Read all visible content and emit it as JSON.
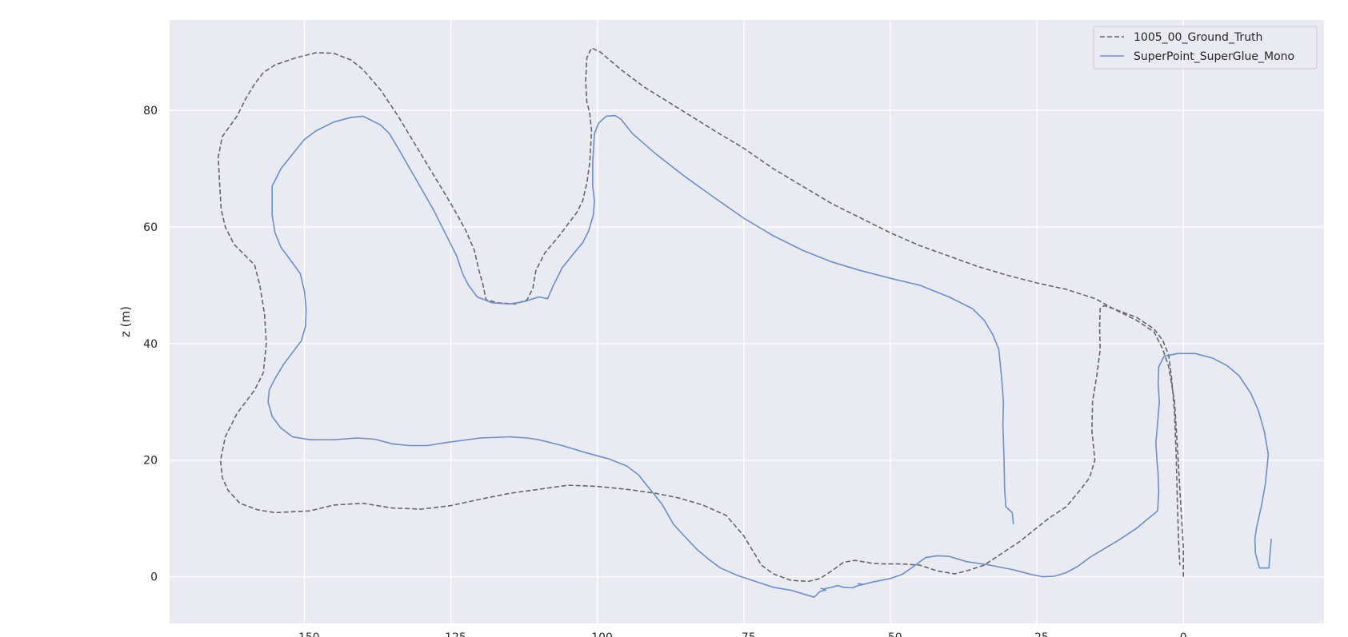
{
  "chart_data": {
    "type": "line",
    "title": "",
    "xlabel": "",
    "ylabel": "z (m)",
    "xlim": [
      -173,
      24
    ],
    "ylim": [
      -8,
      95.5
    ],
    "xticks": [
      -150,
      -125,
      -100,
      -75,
      -50,
      -25,
      0
    ],
    "yticks": [
      0,
      20,
      40,
      60,
      80
    ],
    "grid": true,
    "legend": {
      "position": "top-right",
      "entries": [
        "1005_00_Ground_Truth",
        "SuperPoint_SuperGlue_Mono"
      ]
    },
    "series": [
      {
        "name": "1005_00_Ground_Truth",
        "color": "#666666",
        "dashed": true,
        "points": [
          [
            0,
            0
          ],
          [
            0,
            5
          ],
          [
            -0.3,
            10
          ],
          [
            -0.6,
            15
          ],
          [
            -1,
            22
          ],
          [
            -1.5,
            30
          ],
          [
            -2.5,
            36
          ],
          [
            -3.5,
            39
          ],
          [
            -5,
            42
          ],
          [
            -8,
            44
          ],
          [
            -12,
            46
          ],
          [
            -13.5,
            46.5
          ],
          [
            -14.2,
            46
          ],
          [
            -14.3,
            43
          ],
          [
            -14.2,
            39
          ],
          [
            -14.7,
            35
          ],
          [
            -15.5,
            30
          ],
          [
            -15.6,
            25
          ],
          [
            -15.1,
            20
          ],
          [
            -16,
            17
          ],
          [
            -17.5,
            15
          ],
          [
            -20,
            12
          ],
          [
            -23,
            10
          ],
          [
            -25.5,
            8
          ],
          [
            -28,
            6
          ],
          [
            -31,
            4
          ],
          [
            -34,
            2
          ],
          [
            -37,
            1
          ],
          [
            -39,
            0.5
          ],
          [
            -42,
            1
          ],
          [
            -45,
            2
          ],
          [
            -48,
            2.2
          ],
          [
            -51,
            2.2
          ],
          [
            -53,
            2.3
          ],
          [
            -56,
            2.8
          ],
          [
            -58,
            2.5
          ],
          [
            -60,
            1
          ],
          [
            -62,
            -0.3
          ],
          [
            -64,
            -0.8
          ],
          [
            -67,
            -0.6
          ],
          [
            -70,
            0.5
          ],
          [
            -72,
            2
          ],
          [
            -75,
            7
          ],
          [
            -78,
            10.5
          ],
          [
            -82,
            12.3
          ],
          [
            -86,
            13.5
          ],
          [
            -90,
            14.3
          ],
          [
            -95,
            15
          ],
          [
            -100,
            15.5
          ],
          [
            -105,
            15.7
          ],
          [
            -110,
            15
          ],
          [
            -115,
            14.3
          ],
          [
            -120,
            13.3
          ],
          [
            -125,
            12.2
          ],
          [
            -130,
            11.6
          ],
          [
            -135,
            11.8
          ],
          [
            -140,
            12.6
          ],
          [
            -145,
            12.3
          ],
          [
            -149,
            11.3
          ],
          [
            -155,
            11
          ],
          [
            -158,
            11.5
          ],
          [
            -161,
            12.6
          ],
          [
            -163,
            14.8
          ],
          [
            -164,
            17
          ],
          [
            -164.3,
            20
          ],
          [
            -163.5,
            24
          ],
          [
            -161.5,
            28
          ],
          [
            -158.5,
            32
          ],
          [
            -157,
            35
          ],
          [
            -156.5,
            40
          ],
          [
            -156.8,
            45
          ],
          [
            -157.6,
            50
          ],
          [
            -158.5,
            53.5
          ],
          [
            -160.5,
            55.5
          ],
          [
            -162,
            57
          ],
          [
            -163.5,
            60
          ],
          [
            -164.2,
            63
          ],
          [
            -164.5,
            68
          ],
          [
            -164.7,
            72
          ],
          [
            -164,
            75.5
          ],
          [
            -161.5,
            79
          ],
          [
            -160,
            82
          ],
          [
            -158.5,
            84.5
          ],
          [
            -157,
            86.5
          ],
          [
            -155,
            87.8
          ],
          [
            -151.5,
            89
          ],
          [
            -148,
            89.9
          ],
          [
            -145,
            89.8
          ],
          [
            -142,
            88.6
          ],
          [
            -140,
            87
          ],
          [
            -137,
            83.5
          ],
          [
            -134,
            79
          ],
          [
            -131,
            74
          ],
          [
            -128,
            69
          ],
          [
            -125,
            64
          ],
          [
            -122.5,
            59.5
          ],
          [
            -121,
            56
          ],
          [
            -120.2,
            52.5
          ],
          [
            -119.5,
            50
          ],
          [
            -119,
            47.5
          ],
          [
            -117,
            47
          ],
          [
            -114,
            46.8
          ],
          [
            -112,
            47.5
          ],
          [
            -111,
            49.5
          ],
          [
            -110.5,
            52.5
          ],
          [
            -109,
            55.5
          ],
          [
            -106.5,
            58.5
          ],
          [
            -105,
            60.5
          ],
          [
            -103.5,
            62.5
          ],
          [
            -102.5,
            64.5
          ],
          [
            -101.8,
            67.5
          ],
          [
            -101.3,
            71
          ],
          [
            -101,
            76.5
          ],
          [
            -101.3,
            79.5
          ],
          [
            -101.8,
            81.5
          ],
          [
            -102,
            85
          ],
          [
            -101.8,
            89
          ],
          [
            -101,
            90.7
          ],
          [
            -99.5,
            90
          ],
          [
            -96,
            87
          ],
          [
            -92,
            84
          ],
          [
            -88,
            81.5
          ],
          [
            -84,
            79
          ],
          [
            -80,
            76.5
          ],
          [
            -75,
            73.5
          ],
          [
            -70,
            70
          ],
          [
            -65,
            67
          ],
          [
            -60,
            64
          ],
          [
            -55,
            61.5
          ],
          [
            -50,
            59
          ],
          [
            -45,
            56.8
          ],
          [
            -40,
            55
          ],
          [
            -35,
            53.2
          ],
          [
            -30,
            51.7
          ],
          [
            -25,
            50.4
          ],
          [
            -20,
            49.3
          ],
          [
            -15,
            47.7
          ],
          [
            -12,
            46
          ],
          [
            -8,
            44.5
          ],
          [
            -5,
            42.5
          ],
          [
            -3.5,
            40.5
          ],
          [
            -2.5,
            38
          ],
          [
            -2,
            34
          ],
          [
            -1.5,
            28
          ],
          [
            -1.2,
            20
          ],
          [
            -1.0,
            12
          ],
          [
            -0.8,
            6
          ],
          [
            -0.6,
            2
          ]
        ]
      },
      {
        "name": "SuperPoint_SuperGlue_Mono",
        "color": "#6d8ec6",
        "dashed": false,
        "points": [
          [
            15,
            6.5
          ],
          [
            14.8,
            4
          ],
          [
            14.6,
            1.5
          ],
          [
            13,
            1.5
          ],
          [
            12.3,
            4
          ],
          [
            12.2,
            6.5
          ],
          [
            12.5,
            8.5
          ],
          [
            13.3,
            12
          ],
          [
            14,
            16
          ],
          [
            14.5,
            21
          ],
          [
            13.8,
            25
          ],
          [
            12.8,
            28.5
          ],
          [
            11.5,
            31.5
          ],
          [
            9.5,
            34.5
          ],
          [
            7.5,
            36.2
          ],
          [
            5,
            37.5
          ],
          [
            2,
            38.3
          ],
          [
            -1,
            38.3
          ],
          [
            -3.3,
            37.8
          ],
          [
            -4.2,
            36
          ],
          [
            -4.3,
            33
          ],
          [
            -4.1,
            30
          ],
          [
            -4.3,
            27.5
          ],
          [
            -4.5,
            25
          ],
          [
            -4.7,
            23
          ],
          [
            -4.5,
            20
          ],
          [
            -4.3,
            17.5
          ],
          [
            -4.2,
            14.5
          ],
          [
            -4.4,
            11.3
          ],
          [
            -6,
            10
          ],
          [
            -8,
            8.3
          ],
          [
            -11,
            6.3
          ],
          [
            -13.5,
            4.8
          ],
          [
            -16,
            3.3
          ],
          [
            -18,
            1.8
          ],
          [
            -20,
            0.7
          ],
          [
            -22,
            0.1
          ],
          [
            -24,
            0
          ],
          [
            -26,
            0.4
          ],
          [
            -29,
            1.2
          ],
          [
            -33,
            2
          ],
          [
            -37,
            2.6
          ],
          [
            -40,
            3.5
          ],
          [
            -42,
            3.6
          ],
          [
            -44,
            3.3
          ],
          [
            -46,
            1.8
          ],
          [
            -48,
            0.4
          ],
          [
            -50,
            -0.3
          ],
          [
            -53,
            -0.9
          ],
          [
            -55,
            -1.4
          ],
          [
            -55.5,
            -1.2
          ],
          [
            -54.5,
            -1.3
          ],
          [
            -55.5,
            -1.5
          ],
          [
            -56.5,
            -1.9
          ],
          [
            -58,
            -1.8
          ],
          [
            -59,
            -1.5
          ],
          [
            -60,
            -1.8
          ],
          [
            -61.5,
            -2.1
          ],
          [
            -61.8,
            -2
          ],
          [
            -61,
            -2.3
          ],
          [
            -62,
            -2.5
          ],
          [
            -63,
            -3.5
          ],
          [
            -65,
            -2.9
          ],
          [
            -67,
            -2.3
          ],
          [
            -70,
            -1.8
          ],
          [
            -73,
            -0.8
          ],
          [
            -76,
            0.2
          ],
          [
            -79,
            1.5
          ],
          [
            -81,
            3
          ],
          [
            -83,
            4.7
          ],
          [
            -85,
            6.8
          ],
          [
            -87,
            9
          ],
          [
            -89,
            12.5
          ],
          [
            -91,
            15
          ],
          [
            -93,
            17.5
          ],
          [
            -95,
            19
          ],
          [
            -98,
            20.2
          ],
          [
            -102,
            21.3
          ],
          [
            -106,
            22.5
          ],
          [
            -110,
            23.5
          ],
          [
            -112,
            23.8
          ],
          [
            -115,
            24
          ],
          [
            -120,
            23.8
          ],
          [
            -126,
            23
          ],
          [
            -129,
            22.5
          ],
          [
            -132,
            22.5
          ],
          [
            -135,
            22.8
          ],
          [
            -138,
            23.6
          ],
          [
            -141,
            23.8
          ],
          [
            -145,
            23.5
          ],
          [
            -149,
            23.5
          ],
          [
            -152,
            24
          ],
          [
            -154,
            25.5
          ],
          [
            -155.5,
            27.5
          ],
          [
            -156.2,
            30
          ],
          [
            -156,
            32
          ],
          [
            -155,
            34
          ],
          [
            -153.5,
            36.5
          ],
          [
            -152,
            38.5
          ],
          [
            -150.5,
            40.5
          ],
          [
            -149.8,
            43
          ],
          [
            -149.7,
            46
          ],
          [
            -150,
            49
          ],
          [
            -150.7,
            52
          ],
          [
            -152.5,
            54.5
          ],
          [
            -154,
            56.5
          ],
          [
            -155,
            59
          ],
          [
            -155.5,
            62
          ],
          [
            -155.5,
            67
          ],
          [
            -154,
            70
          ],
          [
            -152,
            72.5
          ],
          [
            -150,
            75
          ],
          [
            -148,
            76.5
          ],
          [
            -145,
            78
          ],
          [
            -142,
            78.8
          ],
          [
            -140,
            79
          ],
          [
            -137,
            77.5
          ],
          [
            -135.5,
            76
          ],
          [
            -134,
            73.5
          ],
          [
            -132,
            70
          ],
          [
            -130,
            66.5
          ],
          [
            -128,
            63
          ],
          [
            -126,
            59
          ],
          [
            -124,
            55
          ],
          [
            -123,
            52
          ],
          [
            -122,
            50
          ],
          [
            -120.5,
            48
          ],
          [
            -118,
            47
          ],
          [
            -115,
            46.8
          ],
          [
            -112.5,
            47.2
          ],
          [
            -110,
            48
          ],
          [
            -108.5,
            47.7
          ],
          [
            -107.5,
            50
          ],
          [
            -106,
            53
          ],
          [
            -104,
            55.5
          ],
          [
            -102.5,
            57.3
          ],
          [
            -101.5,
            59.3
          ],
          [
            -100.7,
            62
          ],
          [
            -100.5,
            64.5
          ],
          [
            -100.8,
            67
          ],
          [
            -100.8,
            71
          ],
          [
            -100.5,
            76
          ],
          [
            -99.8,
            77.8
          ],
          [
            -98.5,
            79
          ],
          [
            -97,
            79.1
          ],
          [
            -96,
            78.5
          ],
          [
            -94,
            76
          ],
          [
            -90,
            72.5
          ],
          [
            -85,
            68.6
          ],
          [
            -80,
            65
          ],
          [
            -75,
            61.5
          ],
          [
            -70,
            58.5
          ],
          [
            -65,
            56
          ],
          [
            -60,
            54
          ],
          [
            -55,
            52.5
          ],
          [
            -50,
            51.2
          ],
          [
            -45,
            50
          ],
          [
            -40,
            48
          ],
          [
            -36,
            46
          ],
          [
            -34,
            44
          ],
          [
            -32.5,
            41.5
          ],
          [
            -31.5,
            39
          ],
          [
            -31,
            34
          ],
          [
            -30.7,
            30
          ],
          [
            -30.8,
            26
          ],
          [
            -30.6,
            20
          ],
          [
            -30.5,
            15
          ],
          [
            -30.3,
            12
          ],
          [
            -29.2,
            11
          ],
          [
            -29,
            9
          ]
        ]
      }
    ]
  }
}
